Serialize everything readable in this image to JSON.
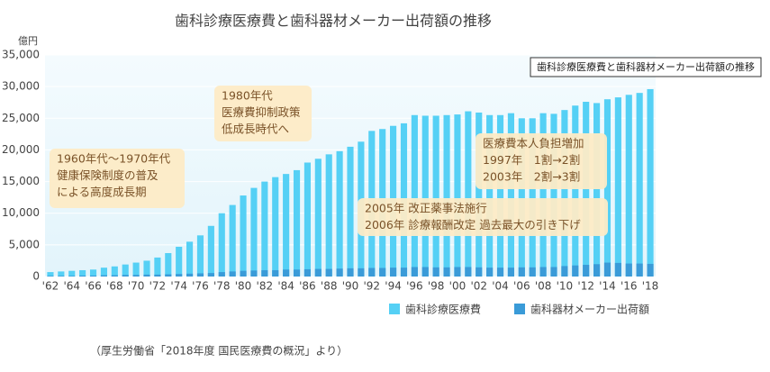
{
  "chart_data": {
    "type": "bar",
    "title": "歯科診療医療費と歯科器材メーカー出荷額の推移",
    "y_unit": "億円",
    "inset_label": "歯科診療医療費と歯科器材メーカー出荷額の推移",
    "source": "（厚生労働省「2018年度 国民医療費の概況」より）",
    "categories": [
      "'62",
      null,
      "'64",
      null,
      "'66",
      null,
      "'68",
      null,
      "'70",
      null,
      "'72",
      null,
      "'74",
      null,
      "'76",
      null,
      "'78",
      null,
      "'80",
      null,
      "'82",
      null,
      "'84",
      null,
      "'86",
      null,
      "'88",
      null,
      "'90",
      null,
      "'92",
      null,
      "'94",
      null,
      "'96",
      null,
      "'98",
      null,
      "'00",
      null,
      "'02",
      null,
      "'04",
      null,
      "'06",
      null,
      "'08",
      null,
      "'10",
      null,
      "'12",
      null,
      "'14",
      null,
      "'16",
      null,
      "'18"
    ],
    "series": [
      {
        "name": "歯科診療医療費",
        "color": "#55d0f5",
        "values": [
          700,
          800,
          900,
          1000,
          1100,
          1400,
          1600,
          1900,
          2200,
          2500,
          3000,
          3700,
          4700,
          5500,
          6500,
          8000,
          10000,
          11300,
          12800,
          14000,
          15000,
          15700,
          16200,
          16800,
          18000,
          18600,
          19300,
          19800,
          20500,
          21300,
          23000,
          23300,
          23800,
          24200,
          25500,
          25400,
          25400,
          25500,
          25600,
          26100,
          25900,
          25500,
          25500,
          25800,
          25000,
          25000,
          25800,
          25700,
          26300,
          27000,
          27600,
          27400,
          28000,
          28300,
          28700,
          29000,
          29600
        ]
      },
      {
        "name": "歯科器材メーカー出荷額",
        "color": "#3a9bd8",
        "values": [
          100,
          100,
          100,
          150,
          150,
          200,
          200,
          250,
          250,
          300,
          300,
          350,
          400,
          450,
          500,
          550,
          700,
          800,
          900,
          950,
          1000,
          1000,
          1100,
          1100,
          1150,
          1200,
          1200,
          1250,
          1300,
          1300,
          1350,
          1350,
          1400,
          1400,
          1500,
          1500,
          1450,
          1450,
          1500,
          1500,
          1450,
          1400,
          1400,
          1400,
          1450,
          1450,
          1500,
          1500,
          1650,
          1750,
          1850,
          1950,
          2200,
          2150,
          2050,
          2050,
          2000
        ]
      }
    ],
    "ylim": [
      0,
      35000
    ],
    "yticks": [
      0,
      {
        "value": 5000,
        "label": "5,000"
      },
      {
        "value": 10000,
        "label": "10,000"
      },
      {
        "value": 15000,
        "label": "15,000"
      },
      {
        "value": 20000,
        "label": "20,000"
      },
      {
        "value": 25000,
        "label": "25,000"
      },
      {
        "value": 30000,
        "label": "30,000"
      },
      {
        "value": 35000,
        "label": "35,000"
      }
    ],
    "grid": true,
    "annotations": [
      {
        "lines": [
          "1960年代〜1970年代",
          "健康保険制度の普及",
          "による高度成長期"
        ]
      },
      {
        "lines": [
          "1980年代",
          "医療費抑制政策",
          "低成長時代へ"
        ]
      },
      {
        "lines": [
          "医療費本人負担増加",
          "1997年　1割→2割",
          "2003年　2割→3割"
        ]
      },
      {
        "lines": [
          "2005年 改正薬事法施行",
          "2006年 診療報酬改定 過去最大の引き下げ"
        ]
      }
    ]
  }
}
